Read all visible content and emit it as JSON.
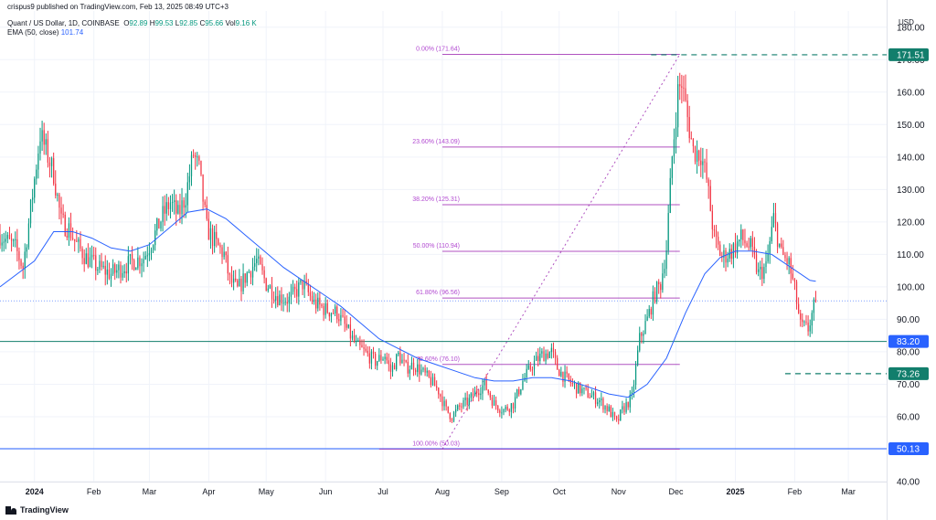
{
  "header": {
    "publisher": "crispus9 published on TradingView.com, Feb 13, 2025 08:49 UTC+3",
    "symbol": "Quant / US Dollar, 1D, COINBASE",
    "ohlc": [
      {
        "label": "O",
        "value": "92.89"
      },
      {
        "label": "H",
        "value": "99.53"
      },
      {
        "label": "L",
        "value": "92.85"
      },
      {
        "label": "C",
        "value": "95.66"
      },
      {
        "label": "Vol",
        "value": "9.16 K"
      }
    ],
    "ema_label": "EMA (50, close)",
    "ema_value": "101.74"
  },
  "currency": "USD",
  "brand": "TradingView",
  "colors": {
    "up": "#089981",
    "down": "#f23645",
    "ema": "#2962ff",
    "fib": "#9c27b0",
    "fib_text": "#b24ad1",
    "marker_green": "#127e6c",
    "marker_blue": "#2962ff"
  },
  "chart_data": {
    "type": "candlestick",
    "title": "Quant / US Dollar, 1D, COINBASE",
    "ylim": [
      40,
      185
    ],
    "y_ticks": [
      40,
      50,
      60,
      70,
      80,
      90,
      100,
      110,
      120,
      130,
      140,
      150,
      160,
      170,
      180
    ],
    "y_tick_labels": [
      "40.00",
      "50.00",
      "60.00",
      "70.00",
      "80.00",
      "90.00",
      "100.00",
      "110.00",
      "120.00",
      "130.00",
      "140.00",
      "150.00",
      "160.00",
      "170.00",
      "180.00"
    ],
    "x_tick_labels": [
      {
        "label": "2024",
        "day": 0,
        "bold": true
      },
      {
        "label": "Feb",
        "day": 31
      },
      {
        "label": "Mar",
        "day": 60
      },
      {
        "label": "Apr",
        "day": 91
      },
      {
        "label": "May",
        "day": 121
      },
      {
        "label": "Jun",
        "day": 152
      },
      {
        "label": "Jul",
        "day": 182
      },
      {
        "label": "Aug",
        "day": 213
      },
      {
        "label": "Sep",
        "day": 244
      },
      {
        "label": "Oct",
        "day": 274
      },
      {
        "label": "Nov",
        "day": 305
      },
      {
        "label": "Dec",
        "day": 335
      },
      {
        "label": "2025",
        "day": 366,
        "bold": true
      },
      {
        "label": "Feb",
        "day": 397
      },
      {
        "label": "Mar",
        "day": 425
      }
    ],
    "day_range": [
      -18,
      445
    ],
    "last_day": 408,
    "price_path": [
      {
        "day": -18,
        "price": 116
      },
      {
        "day": -10,
        "price": 112
      },
      {
        "day": -6,
        "price": 106
      },
      {
        "day": -2,
        "price": 124
      },
      {
        "day": 3,
        "price": 147
      },
      {
        "day": 6,
        "price": 142
      },
      {
        "day": 10,
        "price": 135
      },
      {
        "day": 14,
        "price": 120
      },
      {
        "day": 18,
        "price": 118
      },
      {
        "day": 22,
        "price": 113
      },
      {
        "day": 27,
        "price": 109
      },
      {
        "day": 33,
        "price": 106
      },
      {
        "day": 40,
        "price": 104
      },
      {
        "day": 46,
        "price": 106
      },
      {
        "day": 52,
        "price": 108
      },
      {
        "day": 57,
        "price": 109
      },
      {
        "day": 62,
        "price": 115
      },
      {
        "day": 67,
        "price": 122
      },
      {
        "day": 71,
        "price": 126
      },
      {
        "day": 75,
        "price": 122
      },
      {
        "day": 79,
        "price": 128
      },
      {
        "day": 83,
        "price": 141
      },
      {
        "day": 86,
        "price": 136
      },
      {
        "day": 90,
        "price": 118
      },
      {
        "day": 95,
        "price": 113
      },
      {
        "day": 99,
        "price": 110
      },
      {
        "day": 102,
        "price": 102
      },
      {
        "day": 106,
        "price": 99
      },
      {
        "day": 111,
        "price": 104
      },
      {
        "day": 116,
        "price": 108
      },
      {
        "day": 121,
        "price": 101
      },
      {
        "day": 127,
        "price": 97
      },
      {
        "day": 133,
        "price": 96
      },
      {
        "day": 140,
        "price": 101
      },
      {
        "day": 146,
        "price": 95
      },
      {
        "day": 152,
        "price": 93
      },
      {
        "day": 158,
        "price": 92
      },
      {
        "day": 163,
        "price": 87
      },
      {
        "day": 168,
        "price": 82
      },
      {
        "day": 174,
        "price": 79
      },
      {
        "day": 178,
        "price": 77
      },
      {
        "day": 183,
        "price": 79
      },
      {
        "day": 186,
        "price": 74
      },
      {
        "day": 190,
        "price": 79
      },
      {
        "day": 194,
        "price": 75
      },
      {
        "day": 198,
        "price": 76
      },
      {
        "day": 202,
        "price": 74
      },
      {
        "day": 207,
        "price": 71
      },
      {
        "day": 211,
        "price": 68
      },
      {
        "day": 215,
        "price": 62
      },
      {
        "day": 218,
        "price": 60
      },
      {
        "day": 222,
        "price": 63
      },
      {
        "day": 227,
        "price": 65
      },
      {
        "day": 231,
        "price": 68
      },
      {
        "day": 235,
        "price": 70
      },
      {
        "day": 240,
        "price": 64
      },
      {
        "day": 245,
        "price": 62
      },
      {
        "day": 250,
        "price": 64
      },
      {
        "day": 255,
        "price": 71
      },
      {
        "day": 260,
        "price": 76
      },
      {
        "day": 265,
        "price": 79
      },
      {
        "day": 270,
        "price": 80
      },
      {
        "day": 273,
        "price": 75
      },
      {
        "day": 277,
        "price": 72
      },
      {
        "day": 283,
        "price": 69
      },
      {
        "day": 289,
        "price": 67
      },
      {
        "day": 295,
        "price": 65
      },
      {
        "day": 300,
        "price": 62
      },
      {
        "day": 304,
        "price": 58
      },
      {
        "day": 307,
        "price": 62
      },
      {
        "day": 312,
        "price": 66
      },
      {
        "day": 316,
        "price": 84
      },
      {
        "day": 320,
        "price": 90
      },
      {
        "day": 324,
        "price": 98
      },
      {
        "day": 327,
        "price": 101
      },
      {
        "day": 330,
        "price": 112
      },
      {
        "day": 333,
        "price": 140
      },
      {
        "day": 336,
        "price": 160
      },
      {
        "day": 338,
        "price": 163
      },
      {
        "day": 341,
        "price": 152
      },
      {
        "day": 344,
        "price": 142
      },
      {
        "day": 348,
        "price": 141
      },
      {
        "day": 351,
        "price": 133
      },
      {
        "day": 355,
        "price": 115
      },
      {
        "day": 359,
        "price": 109
      },
      {
        "day": 364,
        "price": 111
      },
      {
        "day": 369,
        "price": 115
      },
      {
        "day": 374,
        "price": 112
      },
      {
        "day": 378,
        "price": 104
      },
      {
        "day": 382,
        "price": 106
      },
      {
        "day": 386,
        "price": 121
      },
      {
        "day": 390,
        "price": 110
      },
      {
        "day": 394,
        "price": 107
      },
      {
        "day": 397,
        "price": 99
      },
      {
        "day": 400,
        "price": 88
      },
      {
        "day": 404,
        "price": 87
      },
      {
        "day": 408,
        "price": 96
      }
    ],
    "ema_path": [
      {
        "day": -18,
        "price": 100
      },
      {
        "day": 0,
        "price": 108
      },
      {
        "day": 10,
        "price": 117
      },
      {
        "day": 20,
        "price": 117
      },
      {
        "day": 30,
        "price": 115
      },
      {
        "day": 40,
        "price": 112
      },
      {
        "day": 50,
        "price": 111
      },
      {
        "day": 60,
        "price": 113
      },
      {
        "day": 70,
        "price": 118
      },
      {
        "day": 80,
        "price": 123
      },
      {
        "day": 90,
        "price": 124
      },
      {
        "day": 100,
        "price": 121
      },
      {
        "day": 110,
        "price": 116
      },
      {
        "day": 120,
        "price": 111
      },
      {
        "day": 130,
        "price": 106
      },
      {
        "day": 140,
        "price": 102
      },
      {
        "day": 150,
        "price": 98
      },
      {
        "day": 160,
        "price": 94
      },
      {
        "day": 170,
        "price": 89
      },
      {
        "day": 180,
        "price": 84
      },
      {
        "day": 190,
        "price": 81
      },
      {
        "day": 200,
        "price": 78
      },
      {
        "day": 210,
        "price": 76
      },
      {
        "day": 220,
        "price": 74
      },
      {
        "day": 230,
        "price": 72
      },
      {
        "day": 240,
        "price": 71
      },
      {
        "day": 250,
        "price": 71
      },
      {
        "day": 260,
        "price": 72
      },
      {
        "day": 270,
        "price": 72
      },
      {
        "day": 280,
        "price": 71
      },
      {
        "day": 290,
        "price": 69
      },
      {
        "day": 300,
        "price": 67
      },
      {
        "day": 310,
        "price": 66
      },
      {
        "day": 320,
        "price": 70
      },
      {
        "day": 330,
        "price": 78
      },
      {
        "day": 340,
        "price": 92
      },
      {
        "day": 350,
        "price": 104
      },
      {
        "day": 358,
        "price": 109
      },
      {
        "day": 366,
        "price": 111
      },
      {
        "day": 375,
        "price": 111
      },
      {
        "day": 385,
        "price": 110
      },
      {
        "day": 395,
        "price": 106
      },
      {
        "day": 405,
        "price": 102
      },
      {
        "day": 408,
        "price": 101.74
      }
    ],
    "fib_levels": [
      {
        "label": "0.00% (171.64)",
        "price": 171.64,
        "day_start": 213
      },
      {
        "label": "23.60% (143.09)",
        "price": 143.09,
        "day_start": 213
      },
      {
        "label": "38.20% (125.31)",
        "price": 125.31,
        "day_start": 213
      },
      {
        "label": "50.00% (110.94)",
        "price": 110.94,
        "day_start": 213
      },
      {
        "label": "61.80% (96.56)",
        "price": 96.56,
        "day_start": 213
      },
      {
        "label": "78.60% (76.10)",
        "price": 76.1,
        "day_start": 213
      },
      {
        "label": "100.00% (50.03)",
        "price": 50.03,
        "day_start": 180
      }
    ],
    "fib_day_end": 337,
    "fib_trend": {
      "from": {
        "day": 213,
        "price": 50.03
      },
      "to": {
        "day": 337,
        "price": 171.64
      }
    },
    "horizontal_lines": [
      {
        "price": 83.2,
        "label": "83.20",
        "style": "solid",
        "color": "#127e6c",
        "box": "#2962ff"
      },
      {
        "price": 95.66,
        "style": "dotted",
        "color": "#2962ff"
      },
      {
        "price": 50.13,
        "label": "50.13",
        "style": "solid",
        "color": "#2962ff",
        "box": "#2962ff"
      }
    ],
    "markers": [
      {
        "price": 171.51,
        "label": "171.51",
        "day_start": 322,
        "color": "#127e6c"
      },
      {
        "price": 73.26,
        "label": "73.26",
        "day_start": 392,
        "color": "#127e6c"
      }
    ],
    "last_close": 95.66
  }
}
